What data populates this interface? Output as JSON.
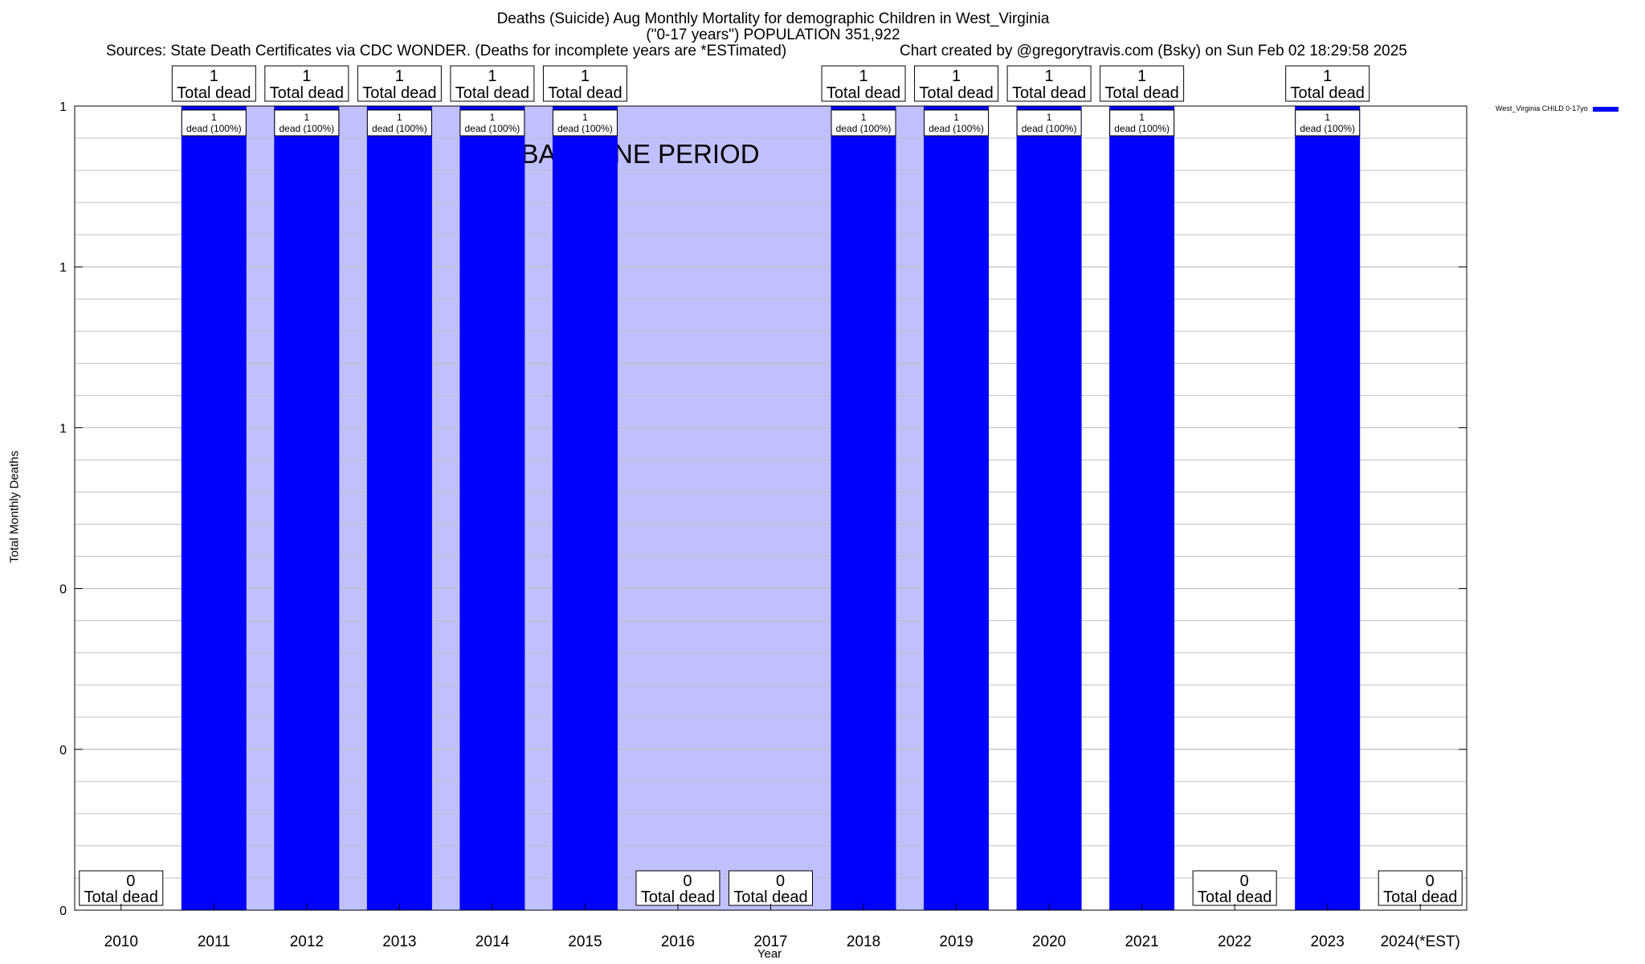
{
  "title": "Deaths (Suicide) Aug Monthly Mortality for demographic Children in West_Virginia",
  "subtitle": "(\"0-17 years\") POPULATION 351,922",
  "sources": "Sources: State Death Certificates via CDC WONDER. (Deaths for incomplete years are *ESTimated)",
  "credit": "Chart created by @gregorytravis.com (Bsky) on Sun Feb 02 18:29:58 2025",
  "colors": {
    "bar": "#0000ff",
    "baseline": "#c0c0ff",
    "grid": "#c0c0c0",
    "axis": "#000000"
  },
  "chart_data": {
    "type": "bar",
    "title": "Deaths (Suicide) Aug Monthly Mortality for demographic Children in West_Virginia",
    "xlabel": "Year",
    "ylabel": "Total Monthly Deaths",
    "categories": [
      "2010",
      "2011",
      "2012",
      "2013",
      "2014",
      "2015",
      "2016",
      "2017",
      "2018",
      "2019",
      "2020",
      "2021",
      "2022",
      "2023",
      "2024(*EST)"
    ],
    "series": [
      {
        "name": "West_Virginia CHILD 0-17yo",
        "values": [
          0,
          1,
          1,
          1,
          1,
          1,
          0,
          0,
          1,
          1,
          1,
          1,
          0,
          1,
          0
        ]
      }
    ],
    "ylim": [
      0,
      1
    ],
    "ytick_values": [
      0,
      0.2,
      0.4,
      0.6,
      0.8,
      1
    ],
    "ytick_labels": [
      "0",
      "0",
      "0",
      "1",
      "1",
      "1"
    ],
    "minor_grid_step": 0.04,
    "total_label_suffix": "Total dead",
    "bar_label_suffix": "dead (100%)",
    "baseline_label": "BASELINE PERIOD",
    "baseline_range": [
      "2011",
      "2019"
    ],
    "legend_position": "top-right",
    "grid": true
  }
}
